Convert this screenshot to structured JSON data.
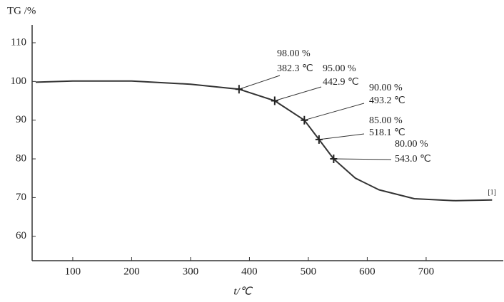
{
  "chart_data": {
    "type": "line",
    "ylabel": "TG /%",
    "xlabel": "t/℃",
    "xlim": [
      31,
      831
    ],
    "ylim": [
      53.7,
      114.6
    ],
    "xticks": [
      100,
      200,
      300,
      400,
      500,
      600,
      700
    ],
    "yticks": [
      60,
      70,
      80,
      90,
      100,
      110
    ],
    "grid": false,
    "color": "#333333",
    "series": [
      {
        "name": "[1]",
        "color": "#333333",
        "x": [
          37,
          100,
          200,
          300,
          382.3,
          442.9,
          493.2,
          518.1,
          543.0,
          580,
          620,
          680,
          750,
          812
        ],
        "values": [
          99.8,
          100.1,
          100.1,
          99.3,
          98,
          95,
          90,
          85,
          80,
          75,
          72,
          69.7,
          69.2,
          69.4
        ]
      }
    ],
    "markers": {
      "x": [
        382.3,
        442.9,
        493.2,
        518.1,
        543.0
      ],
      "x_labels": [
        "382.3 ℃",
        "442.9 ℃",
        "493.2 ℃",
        "518.1 ℃",
        "543.0 ℃"
      ],
      "values": [
        98,
        95,
        90,
        85,
        80
      ],
      "value_labels": [
        "98.00 %",
        "95.00 %",
        "90.00 %",
        "85.00 %",
        "80.00 %"
      ]
    }
  }
}
